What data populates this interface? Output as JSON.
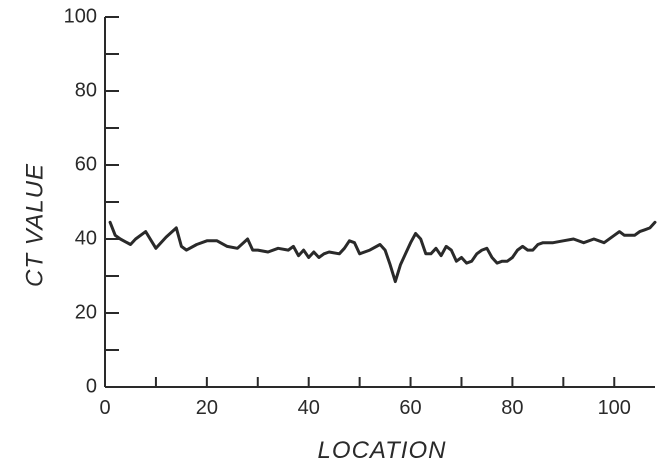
{
  "chart_data": {
    "type": "line",
    "xlabel": "LOCATION",
    "ylabel": "CT VALUE",
    "xlim": [
      0,
      108
    ],
    "ylim": [
      0,
      100
    ],
    "x_ticks": [
      0,
      20,
      40,
      60,
      80,
      100
    ],
    "y_ticks": [
      0,
      20,
      40,
      60,
      80,
      100
    ],
    "grid": false,
    "series": [
      {
        "x": [
          1,
          2,
          3,
          5,
          6,
          8,
          10,
          12,
          14,
          15,
          16,
          18,
          20,
          22,
          24,
          26,
          28,
          29,
          30,
          32,
          34,
          36,
          37,
          38,
          39,
          40,
          41,
          42,
          43,
          44,
          46,
          47,
          48,
          49,
          50,
          52,
          54,
          55,
          56,
          57,
          58,
          59,
          60,
          61,
          62,
          63,
          64,
          65,
          66,
          67,
          68,
          69,
          70,
          71,
          72,
          73,
          74,
          75,
          76,
          77,
          78,
          79,
          80,
          81,
          82,
          83,
          84,
          85,
          86,
          88,
          90,
          92,
          94,
          96,
          98,
          100,
          101,
          102,
          104,
          105,
          106,
          107,
          108
        ],
        "y": [
          44.5,
          41,
          40,
          38.5,
          40,
          42,
          37.5,
          40.5,
          43,
          38,
          37,
          38.5,
          39.5,
          39.5,
          38,
          37.5,
          40,
          37,
          37,
          36.5,
          37.5,
          37,
          38,
          35.5,
          37,
          35,
          36.5,
          35,
          36,
          36.5,
          36,
          37.5,
          39.5,
          39,
          36,
          37,
          38.5,
          37,
          33,
          28.5,
          33,
          36,
          39,
          41.5,
          40,
          36,
          36,
          37.5,
          35.5,
          38,
          37,
          34,
          35,
          33.5,
          34,
          36,
          37,
          37.5,
          35,
          33.5,
          34,
          34,
          35,
          37,
          38,
          37,
          37,
          38.5,
          39,
          39,
          39.5,
          40,
          39,
          40,
          39,
          41,
          42,
          41,
          41,
          42,
          42.5,
          43,
          44.5
        ]
      }
    ]
  }
}
